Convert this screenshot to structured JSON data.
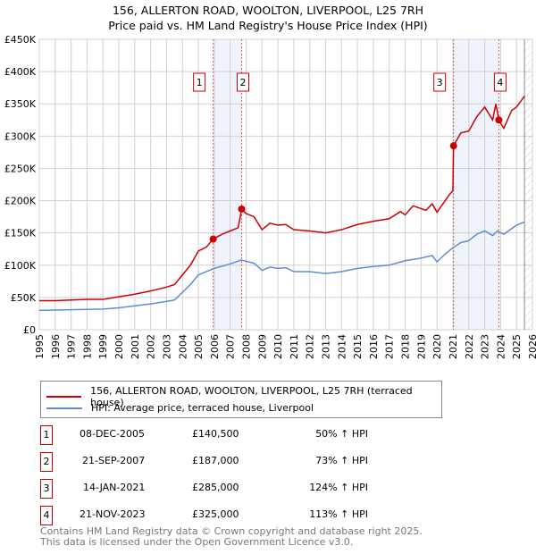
{
  "chart_data": {
    "type": "line",
    "title": "156, ALLERTON ROAD, WOOLTON, LIVERPOOL, L25 7RH",
    "subtitle": "Price paid vs. HM Land Registry's House Price Index (HPI)",
    "xlim": [
      1995,
      2026
    ],
    "ylim": [
      0,
      450000
    ],
    "x_ticks": [
      "1995",
      "1996",
      "1997",
      "1998",
      "1999",
      "2000",
      "2001",
      "2002",
      "2003",
      "2004",
      "2005",
      "2006",
      "2007",
      "2008",
      "2009",
      "2010",
      "2011",
      "2012",
      "2013",
      "2014",
      "2015",
      "2016",
      "2017",
      "2018",
      "2019",
      "2020",
      "2021",
      "2022",
      "2023",
      "2024",
      "2025",
      "2026"
    ],
    "y_ticks": [
      {
        "v": 0,
        "label": "£0"
      },
      {
        "v": 50000,
        "label": "£50K"
      },
      {
        "v": 100000,
        "label": "£100K"
      },
      {
        "v": 150000,
        "label": "£150K"
      },
      {
        "v": 200000,
        "label": "£200K"
      },
      {
        "v": 250000,
        "label": "£250K"
      },
      {
        "v": 300000,
        "label": "£300K"
      },
      {
        "v": 350000,
        "label": "£350K"
      },
      {
        "v": 400000,
        "label": "£400K"
      },
      {
        "v": 450000,
        "label": "£450K"
      }
    ],
    "grid": true,
    "series": [
      {
        "name": "156, ALLERTON ROAD, WOOLTON, LIVERPOOL, L25 7RH (terraced house)",
        "color": "#cc0000",
        "x": [
          1995,
          1996,
          1997,
          1998,
          1999,
          2000,
          2001,
          2002,
          2003,
          2003.5,
          2004,
          2004.5,
          2005,
          2005.5,
          2005.93,
          2006.5,
          2007,
          2007.5,
          2007.72,
          2008,
          2008.5,
          2009,
          2009.5,
          2010,
          2010.5,
          2011,
          2012,
          2013,
          2014,
          2015,
          2016,
          2017,
          2017.7,
          2018,
          2018.5,
          2019.3,
          2019.7,
          2020,
          2020.8,
          2021.0,
          2021.04,
          2021.5,
          2022,
          2022.5,
          2023,
          2023.5,
          2023.7,
          2023.89,
          2024.2,
          2024.7,
          2025,
          2025.3,
          2025.5
        ],
        "y": [
          45000,
          45000,
          46000,
          47000,
          47000,
          51000,
          55000,
          60000,
          66000,
          70000,
          85000,
          100000,
          122000,
          128000,
          140500,
          148000,
          153000,
          158000,
          187000,
          180000,
          175000,
          155000,
          165000,
          162000,
          163000,
          155000,
          153000,
          150000,
          155000,
          163000,
          168000,
          172000,
          183000,
          178000,
          192000,
          185000,
          195000,
          182000,
          210000,
          215000,
          285000,
          305000,
          308000,
          330000,
          345000,
          325000,
          350000,
          325000,
          312000,
          340000,
          345000,
          355000,
          362000
        ]
      },
      {
        "name": "HPI: Average price, terraced house, Liverpool",
        "color": "#5b8fd0",
        "x": [
          1995,
          1997,
          1999,
          2000,
          2001,
          2002,
          2003,
          2003.5,
          2004,
          2004.5,
          2005,
          2006,
          2007,
          2007.7,
          2008.5,
          2009,
          2009.5,
          2010,
          2010.5,
          2011,
          2012,
          2013,
          2014,
          2015,
          2016,
          2017,
          2018,
          2019,
          2019.7,
          2020,
          2020.5,
          2021,
          2021.5,
          2022,
          2022.5,
          2023,
          2023.5,
          2023.8,
          2024.2,
          2025,
          2025.5
        ],
        "y": [
          30000,
          31000,
          32000,
          34000,
          37000,
          40000,
          44000,
          46000,
          58000,
          70000,
          85000,
          95000,
          102000,
          108000,
          103000,
          92000,
          97000,
          95000,
          96000,
          90000,
          90000,
          87000,
          90000,
          95000,
          98000,
          100000,
          107000,
          111000,
          115000,
          105000,
          117000,
          127000,
          135000,
          138000,
          148000,
          153000,
          146000,
          153000,
          148000,
          162000,
          167000
        ]
      }
    ],
    "sales": [
      {
        "n": "1",
        "date": "08-DEC-2005",
        "x": 2005.93,
        "price": "£140,500",
        "value": 140500,
        "hpi": "50% ↑ HPI"
      },
      {
        "n": "2",
        "date": "21-SEP-2007",
        "x": 2007.72,
        "price": "£187,000",
        "value": 187000,
        "hpi": "73% ↑ HPI"
      },
      {
        "n": "3",
        "date": "14-JAN-2021",
        "x": 2021.04,
        "price": "£285,000",
        "value": 285000,
        "hpi": "124% ↑ HPI"
      },
      {
        "n": "4",
        "date": "21-NOV-2023",
        "x": 2023.89,
        "price": "£325,000",
        "value": 325000,
        "hpi": "113% ↑ HPI"
      }
    ],
    "shaded": [
      [
        2005.93,
        2007.72
      ],
      [
        2021.04,
        2023.89
      ]
    ],
    "forecast_start": 2025.5,
    "legend_position": "bottom"
  },
  "footer": [
    "Contains HM Land Registry data © Crown copyright and database right 2025.",
    "This data is licensed under the Open Government Licence v3.0."
  ]
}
